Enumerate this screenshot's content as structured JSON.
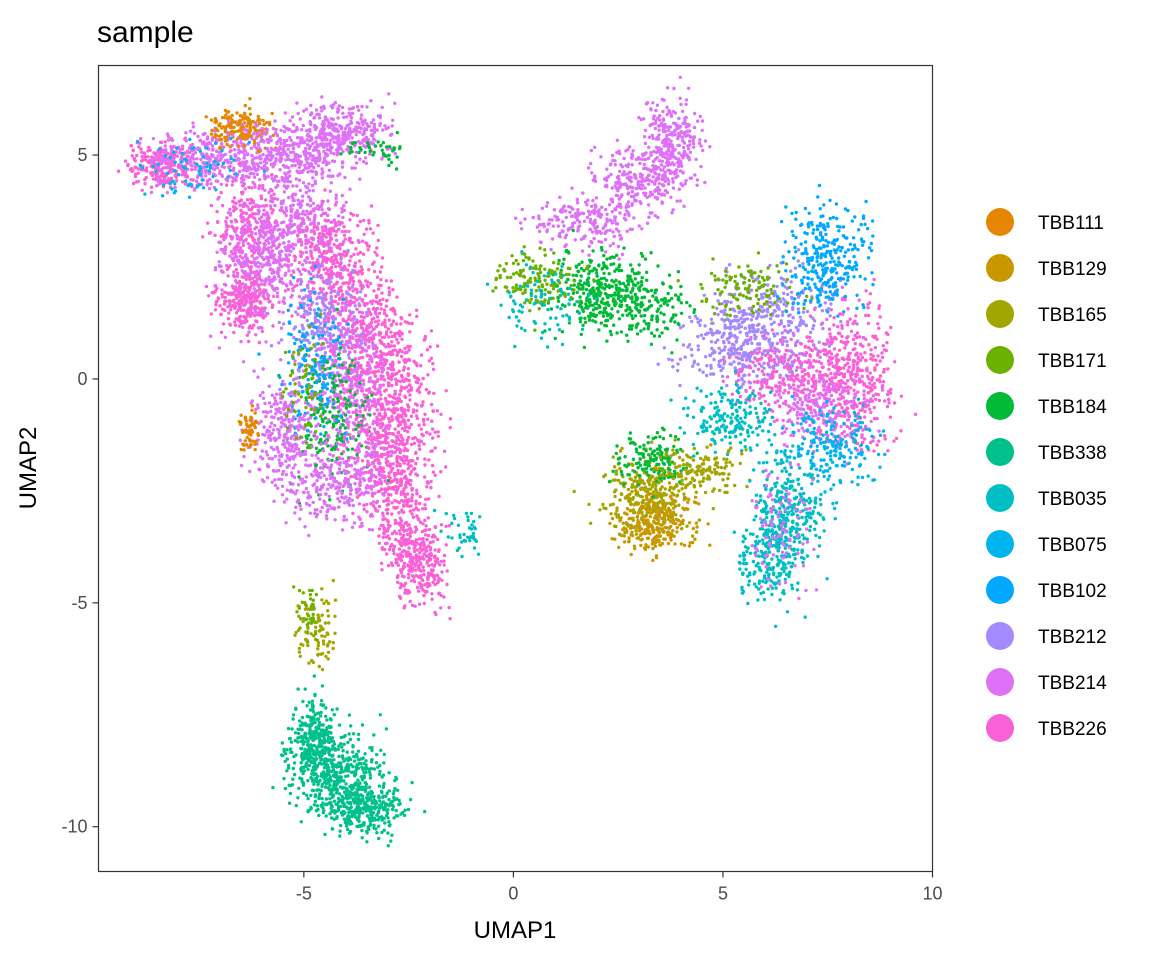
{
  "chart_data": {
    "type": "scatter",
    "title": "sample",
    "xlabel": "UMAP1",
    "ylabel": "UMAP2",
    "xlim": [
      -9.9,
      10
    ],
    "ylim": [
      -11,
      7
    ],
    "xticks": [
      -5,
      0,
      5,
      10
    ],
    "yticks": [
      5,
      0,
      -5,
      -10
    ],
    "xtick_labels": [
      "-5",
      "0",
      "5",
      "10"
    ],
    "ytick_labels": [
      "5",
      "0",
      "-5",
      "-10"
    ],
    "grid": false,
    "legend_position": "right",
    "series": [
      {
        "name": "TBB111",
        "color": "#E58700"
      },
      {
        "name": "TBB129",
        "color": "#C99800"
      },
      {
        "name": "TBB165",
        "color": "#A3A500"
      },
      {
        "name": "TBB171",
        "color": "#6BB100"
      },
      {
        "name": "TBB184",
        "color": "#00BA38"
      },
      {
        "name": "TBB338",
        "color": "#00C08B"
      },
      {
        "name": "TBB035",
        "color": "#00BFC4"
      },
      {
        "name": "TBB075",
        "color": "#00B4F0"
      },
      {
        "name": "TBB102",
        "color": "#00A9FF"
      },
      {
        "name": "TBB212",
        "color": "#A58AFF"
      },
      {
        "name": "TBB214",
        "color": "#DF70F8"
      },
      {
        "name": "TBB226",
        "color": "#FB61D7"
      }
    ],
    "clusters": [
      {
        "series": "TBB214",
        "x": -6.5,
        "y": 4.6
      },
      {
        "series": "TBB226",
        "x": -8.3,
        "y": 4.8
      },
      {
        "series": "TBB111",
        "x": -6.5,
        "y": 5.7
      },
      {
        "series": "TBB214",
        "x": -5.2,
        "y": 5.1
      },
      {
        "series": "TBB214",
        "x": -4.0,
        "y": 5.5
      },
      {
        "series": "TBB226",
        "x": -6.3,
        "y": 3.2
      },
      {
        "series": "TBB214",
        "x": -6.2,
        "y": 2.4
      },
      {
        "series": "TBB226",
        "x": -6.4,
        "y": 1.6
      },
      {
        "series": "TBB214",
        "x": -5.2,
        "y": 3.4
      },
      {
        "series": "TBB226",
        "x": -4.3,
        "y": 2.6
      },
      {
        "series": "TBB212",
        "x": -4.4,
        "y": 1.2
      },
      {
        "series": "TBB226",
        "x": -3.5,
        "y": 0.8
      },
      {
        "series": "TBB226",
        "x": -2.8,
        "y": -0.4
      },
      {
        "series": "TBB214",
        "x": -3.8,
        "y": -0.2
      },
      {
        "series": "TBB184",
        "x": -4.3,
        "y": -0.8
      },
      {
        "series": "TBB214",
        "x": -5.5,
        "y": -1.0
      },
      {
        "series": "TBB226",
        "x": -3.0,
        "y": -1.9
      },
      {
        "series": "TBB214",
        "x": -4.2,
        "y": -2.3
      },
      {
        "series": "TBB226",
        "x": -2.5,
        "y": -3.4
      },
      {
        "series": "TBB226",
        "x": -2.2,
        "y": -4.4
      },
      {
        "series": "TBB111",
        "x": -6.3,
        "y": -1.2
      },
      {
        "series": "TBB214",
        "x": 3.8,
        "y": 5.2
      },
      {
        "series": "TBB214",
        "x": 2.5,
        "y": 3.9
      },
      {
        "series": "TBB214",
        "x": 1.2,
        "y": 3.1
      },
      {
        "series": "TBB184",
        "x": 2.1,
        "y": 2.0
      },
      {
        "series": "TBB171",
        "x": 0.6,
        "y": 2.2
      },
      {
        "series": "TBB184",
        "x": 3.2,
        "y": 1.6
      },
      {
        "series": "TBB212",
        "x": 6.2,
        "y": 1.5
      },
      {
        "series": "TBB102",
        "x": 7.5,
        "y": 2.6
      },
      {
        "series": "TBB226",
        "x": 8.1,
        "y": 0.0
      },
      {
        "series": "TBB226",
        "x": 6.6,
        "y": 0.2
      },
      {
        "series": "TBB212",
        "x": 5.3,
        "y": 0.7
      },
      {
        "series": "TBB165",
        "x": 3.2,
        "y": -2.6
      },
      {
        "series": "TBB129",
        "x": 3.5,
        "y": -3.2
      },
      {
        "series": "TBB035",
        "x": 6.6,
        "y": -3.0
      },
      {
        "series": "TBB035",
        "x": 6.1,
        "y": -4.1
      },
      {
        "series": "TBB035",
        "x": 5.2,
        "y": -0.9
      },
      {
        "series": "TBB075",
        "x": 7.6,
        "y": -1.5
      },
      {
        "series": "TBB165",
        "x": -4.7,
        "y": -5.7
      },
      {
        "series": "TBB338",
        "x": -4.2,
        "y": -8.9
      },
      {
        "series": "TBB338",
        "x": -3.5,
        "y": -9.6
      },
      {
        "series": "TBB338",
        "x": -4.8,
        "y": -8.0
      }
    ]
  }
}
